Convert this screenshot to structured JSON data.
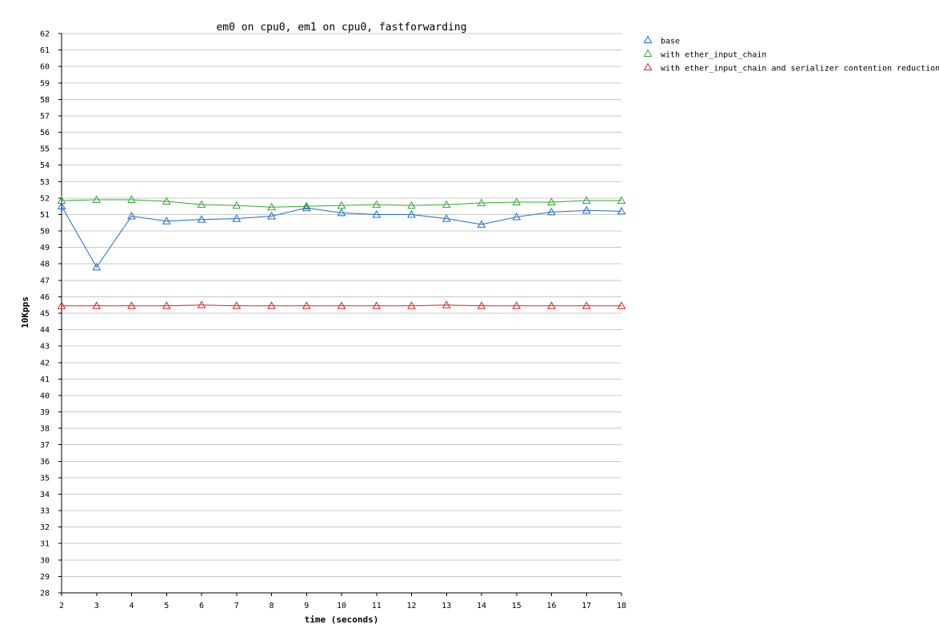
{
  "chart_data": {
    "type": "line",
    "title": "em0 on cpu0, em1 on cpu0, fastforwarding",
    "xlabel": "time (seconds)",
    "ylabel": "10Kpps",
    "xlim": [
      2,
      18
    ],
    "ylim": [
      28,
      62
    ],
    "x_ticks": [
      2,
      3,
      4,
      5,
      6,
      7,
      8,
      9,
      10,
      11,
      12,
      13,
      14,
      15,
      16,
      17,
      18
    ],
    "y_ticks": [
      28,
      29,
      30,
      31,
      32,
      33,
      34,
      35,
      36,
      37,
      38,
      39,
      40,
      41,
      42,
      43,
      44,
      45,
      46,
      47,
      48,
      49,
      50,
      51,
      52,
      53,
      54,
      55,
      56,
      57,
      58,
      59,
      60,
      61,
      62
    ],
    "grid": true,
    "legend_position": "top-right outside plot",
    "marker": "triangle",
    "x": [
      2,
      3,
      4,
      5,
      6,
      7,
      8,
      9,
      10,
      11,
      12,
      13,
      14,
      15,
      16,
      17,
      18
    ],
    "series": [
      {
        "name": "base",
        "color": "#1f6bc4",
        "values": [
          51.5,
          47.8,
          50.9,
          50.6,
          50.7,
          50.75,
          50.9,
          51.4,
          51.1,
          51.0,
          51.0,
          50.75,
          50.4,
          50.85,
          51.15,
          51.25,
          51.2
        ]
      },
      {
        "name": "with ether_input_chain",
        "color": "#2faa2f",
        "values": [
          51.85,
          51.9,
          51.9,
          51.8,
          51.6,
          51.55,
          51.45,
          51.5,
          51.55,
          51.6,
          51.55,
          51.6,
          51.7,
          51.75,
          51.75,
          51.85,
          51.85
        ]
      },
      {
        "name": "with ether_input_chain and serializer contention reduction",
        "color": "#dd2222",
        "values": [
          45.45,
          45.45,
          45.45,
          45.45,
          45.5,
          45.45,
          45.45,
          45.45,
          45.45,
          45.45,
          45.45,
          45.5,
          45.45,
          45.45,
          45.45,
          45.45,
          45.45
        ]
      }
    ]
  }
}
